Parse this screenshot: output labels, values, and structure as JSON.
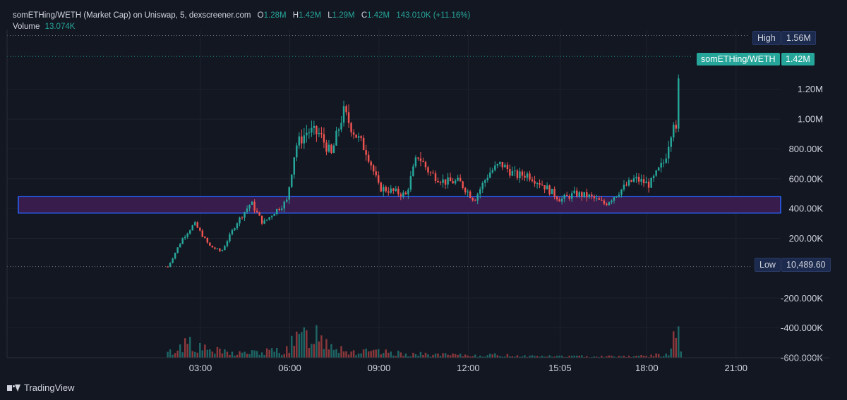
{
  "header": {
    "title": "somETHing/WETH (Market Cap) on Uniswap, 5, dexscreener.com",
    "o_key": "O",
    "o_val": "1.28M",
    "h_key": "H",
    "h_val": "1.42M",
    "l_key": "L",
    "l_val": "1.29M",
    "c_key": "C",
    "c_val": "1.42M",
    "change": "143.010K (+11.16%)",
    "volume_key": "Volume",
    "volume_val": "13.074K"
  },
  "tags": {
    "high_label": "High",
    "high_value": "1.56M",
    "symbol_label": "somETHing/WETH",
    "symbol_value": "1.42M",
    "low_label": "Low",
    "low_value": "10,489.60"
  },
  "footer": {
    "brand": "TradingView"
  },
  "colors": {
    "background": "#131722",
    "up": "#26a69a",
    "down": "#ef5350",
    "zone_fill": "#3a1c4f",
    "zone_border": "#2962ff",
    "grid": "#1e222d"
  },
  "chart_data": {
    "type": "candlestick",
    "interval": "5m",
    "x_ticks": [
      "03:00",
      "06:00",
      "09:00",
      "12:00",
      "15:05",
      "18:00",
      "21:00"
    ],
    "x_tick_hours": [
      3,
      6,
      9,
      12,
      15.0833,
      18,
      21
    ],
    "x_range_hours": [
      -3.5,
      22.5
    ],
    "y_ticks": [
      {
        "value": 1200000,
        "label": "1.20M"
      },
      {
        "value": 1000000,
        "label": "1.00M"
      },
      {
        "value": 800000,
        "label": "800.00K"
      },
      {
        "value": 600000,
        "label": "600.00K"
      },
      {
        "value": 400000,
        "label": "400.00K"
      },
      {
        "value": 200000,
        "label": "200.00K"
      },
      {
        "value": -200000,
        "label": "-200.000K"
      },
      {
        "value": -400000,
        "label": "-400.000K"
      },
      {
        "value": -600000,
        "label": "-600.000K"
      }
    ],
    "y_range": [
      -600000,
      1600000
    ],
    "high_line": 1560000,
    "last_line": 1420000,
    "low_line": 10489.6,
    "zone": {
      "low": 370000,
      "high": 480000
    },
    "price_path_hours": [
      1.9,
      2.4,
      2.8,
      3.3,
      3.7,
      4.2,
      4.7,
      5.1,
      5.5,
      5.9,
      6.2,
      6.6,
      7.0,
      7.4,
      7.8,
      8.2,
      8.6,
      9.0,
      9.4,
      9.9,
      10.3,
      10.7,
      11.2,
      11.7,
      12.2,
      12.7,
      13.1,
      13.6,
      14.0,
      14.5,
      15.1,
      15.6,
      16.1,
      16.6,
      17.1,
      17.6,
      18.1,
      18.6,
      18.9,
      19.0,
      19.1
    ],
    "price_path_values": [
      10500,
      200000,
      300000,
      150000,
      110000,
      300000,
      440000,
      300000,
      380000,
      450000,
      820000,
      920000,
      900000,
      760000,
      1050000,
      900000,
      780000,
      540000,
      520000,
      490000,
      760000,
      640000,
      580000,
      580000,
      460000,
      640000,
      700000,
      620000,
      630000,
      560000,
      460000,
      500000,
      480000,
      430000,
      520000,
      600000,
      560000,
      720000,
      1000000,
      880000,
      1420000
    ],
    "volume_path_hours": [
      1.9,
      2.3,
      2.6,
      3.0,
      4.0,
      5.0,
      5.8,
      6.3,
      6.8,
      7.4,
      8.0,
      9.0,
      10.0,
      11.0,
      12.0,
      13.0,
      14.0,
      15.0,
      16.0,
      17.0,
      18.0,
      18.8,
      19.05,
      19.15
    ],
    "volume_path_values": [
      30000,
      60000,
      130000,
      60000,
      30000,
      35000,
      50000,
      120000,
      170000,
      100000,
      40000,
      35000,
      25000,
      20000,
      15000,
      18000,
      12000,
      10000,
      10000,
      10000,
      12000,
      25000,
      250000,
      30000
    ]
  }
}
